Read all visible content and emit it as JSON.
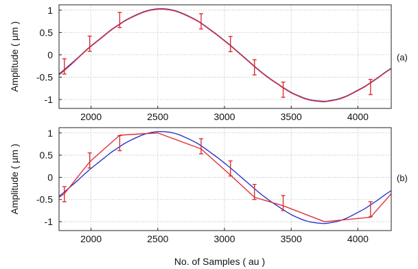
{
  "chart_data": [
    {
      "type": "line",
      "panel_label": "(a)",
      "ylabel": "Amplitude ( µm )",
      "xlabel": "",
      "xlim": [
        1760,
        4250
      ],
      "ylim": [
        -1.2,
        1.12
      ],
      "xticks": [
        2000,
        2500,
        3000,
        3500,
        4000
      ],
      "yticks": [
        -1,
        -0.5,
        0,
        0.5,
        1
      ],
      "ytick_labels": [
        "-1",
        "-0.5",
        "0",
        "0.5",
        "1"
      ],
      "grid": true,
      "colors": {
        "fit": "#2a36c8",
        "measured": "#e0303a",
        "errorbar": "#d42424"
      },
      "series": [
        {
          "style": "smooth",
          "color": "#2a36c8",
          "x": [
            1760,
            1800,
            1850,
            1900,
            1950,
            2000,
            2050,
            2100,
            2150,
            2200,
            2250,
            2300,
            2350,
            2400,
            2450,
            2500,
            2550,
            2600,
            2650,
            2700,
            2750,
            2800,
            2850,
            2900,
            2950,
            3000,
            3050,
            3100,
            3150,
            3200,
            3250,
            3300,
            3350,
            3400,
            3450,
            3500,
            3550,
            3600,
            3650,
            3700,
            3750,
            3800,
            3850,
            3900,
            3950,
            4000,
            4050,
            4100,
            4150,
            4200,
            4250
          ],
          "y": [
            -0.43,
            -0.33,
            -0.2,
            -0.07,
            0.07,
            0.2,
            0.32,
            0.44,
            0.56,
            0.66,
            0.76,
            0.84,
            0.91,
            0.97,
            1.01,
            1.03,
            1.03,
            1.01,
            0.97,
            0.91,
            0.84,
            0.76,
            0.66,
            0.55,
            0.44,
            0.32,
            0.2,
            0.07,
            -0.06,
            -0.19,
            -0.32,
            -0.44,
            -0.55,
            -0.65,
            -0.75,
            -0.84,
            -0.91,
            -0.97,
            -1.01,
            -1.03,
            -1.04,
            -1.02,
            -0.99,
            -0.94,
            -0.87,
            -0.79,
            -0.71,
            -0.61,
            -0.51,
            -0.4,
            -0.3
          ]
        },
        {
          "style": "smooth",
          "color": "#e0303a",
          "x": [
            1760,
            1800,
            1850,
            1900,
            1950,
            2000,
            2050,
            2100,
            2150,
            2200,
            2250,
            2300,
            2350,
            2400,
            2450,
            2500,
            2550,
            2600,
            2650,
            2700,
            2750,
            2800,
            2850,
            2900,
            2950,
            3000,
            3050,
            3100,
            3150,
            3200,
            3250,
            3300,
            3350,
            3400,
            3450,
            3500,
            3550,
            3600,
            3650,
            3700,
            3750,
            3800,
            3850,
            3900,
            3950,
            4000,
            4050,
            4100,
            4150,
            4200,
            4250
          ],
          "y": [
            -0.45,
            -0.35,
            -0.22,
            -0.08,
            0.06,
            0.19,
            0.31,
            0.43,
            0.55,
            0.65,
            0.75,
            0.83,
            0.9,
            0.96,
            1.0,
            1.02,
            1.02,
            1.0,
            0.96,
            0.9,
            0.83,
            0.75,
            0.65,
            0.54,
            0.43,
            0.31,
            0.19,
            0.06,
            -0.07,
            -0.2,
            -0.33,
            -0.45,
            -0.56,
            -0.66,
            -0.76,
            -0.85,
            -0.92,
            -0.98,
            -1.02,
            -1.04,
            -1.05,
            -1.03,
            -1.0,
            -0.95,
            -0.88,
            -0.8,
            -0.72,
            -0.62,
            -0.52,
            -0.41,
            -0.31
          ]
        }
      ],
      "errorbars": {
        "x": [
          1800,
          1990,
          2215,
          2825,
          3045,
          3225,
          3440,
          4095
        ],
        "y": [
          -0.26,
          0.25,
          0.78,
          0.75,
          0.24,
          -0.28,
          -0.78,
          -0.72
        ],
        "half_height": 0.17
      }
    },
    {
      "type": "line",
      "panel_label": "(b)",
      "ylabel": "Amplitude ( µm )",
      "xlabel": "No. of Samples ( au )",
      "xlim": [
        1760,
        4250
      ],
      "ylim": [
        -1.2,
        1.12
      ],
      "xticks": [
        2000,
        2500,
        3000,
        3500,
        4000
      ],
      "yticks": [
        -1,
        -0.5,
        0,
        0.5,
        1
      ],
      "ytick_labels": [
        "-1",
        "-0.5",
        "0",
        "0.5",
        "1"
      ],
      "grid": true,
      "colors": {
        "fit": "#2a36c8",
        "measured": "#e0303a",
        "errorbar": "#d42424"
      },
      "series": [
        {
          "style": "smooth",
          "color": "#2a36c8",
          "x": [
            1760,
            1800,
            1850,
            1900,
            1950,
            2000,
            2050,
            2100,
            2150,
            2200,
            2250,
            2300,
            2350,
            2400,
            2450,
            2500,
            2550,
            2600,
            2650,
            2700,
            2750,
            2800,
            2850,
            2900,
            2950,
            3000,
            3050,
            3100,
            3150,
            3200,
            3250,
            3300,
            3350,
            3400,
            3450,
            3500,
            3550,
            3600,
            3650,
            3700,
            3750,
            3800,
            3850,
            3900,
            3950,
            4000,
            4050,
            4100,
            4150,
            4200,
            4250
          ],
          "y": [
            -0.43,
            -0.33,
            -0.2,
            -0.07,
            0.07,
            0.2,
            0.32,
            0.44,
            0.56,
            0.66,
            0.76,
            0.84,
            0.91,
            0.97,
            1.01,
            1.03,
            1.03,
            1.01,
            0.97,
            0.91,
            0.84,
            0.76,
            0.66,
            0.55,
            0.44,
            0.32,
            0.2,
            0.07,
            -0.06,
            -0.19,
            -0.32,
            -0.44,
            -0.55,
            -0.65,
            -0.75,
            -0.84,
            -0.91,
            -0.97,
            -1.01,
            -1.03,
            -1.04,
            -1.02,
            -0.99,
            -0.94,
            -0.87,
            -0.79,
            -0.71,
            -0.61,
            -0.51,
            -0.4,
            -0.3
          ]
        },
        {
          "style": "straight",
          "color": "#e0303a",
          "x": [
            1760,
            1800,
            1990,
            2215,
            2500,
            2825,
            3045,
            3225,
            3440,
            3750,
            4095,
            4250
          ],
          "y": [
            -0.45,
            -0.37,
            0.35,
            0.95,
            1.0,
            0.64,
            0.05,
            -0.45,
            -0.64,
            -1.0,
            -0.9,
            -0.37
          ]
        }
      ],
      "errorbars": {
        "x": [
          1800,
          1990,
          2215,
          2825,
          3045,
          3225,
          3440,
          4095
        ],
        "y": [
          -0.38,
          0.38,
          0.77,
          0.7,
          0.2,
          -0.33,
          -0.58,
          -0.72
        ],
        "half_height": 0.17
      }
    }
  ]
}
